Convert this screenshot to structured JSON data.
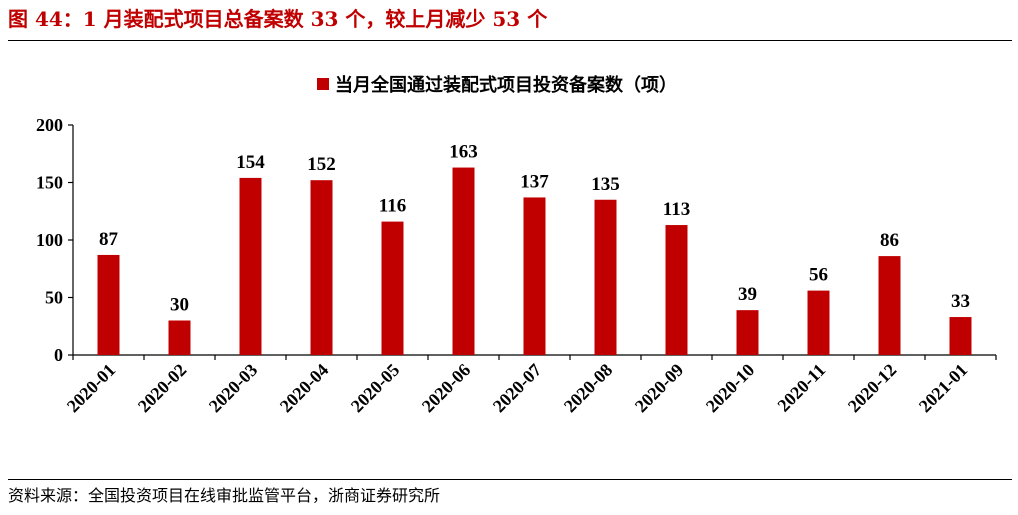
{
  "figure": {
    "title": "图 44：1 月装配式项目总备案数 33 个，较上月减少 53 个",
    "source": "资料来源：全国投资项目在线审批监管平台，浙商证券研究所",
    "title_color": "#C00000"
  },
  "chart_data": {
    "type": "bar",
    "categories": [
      "2020-01",
      "2020-02",
      "2020-03",
      "2020-04",
      "2020-05",
      "2020-06",
      "2020-07",
      "2020-08",
      "2020-09",
      "2020-10",
      "2020-11",
      "2020-12",
      "2021-01"
    ],
    "series": [
      {
        "name": "当月全国通过装配式项目投资备案数（项）",
        "values": [
          87,
          30,
          154,
          152,
          116,
          163,
          137,
          135,
          113,
          39,
          56,
          86,
          33
        ],
        "color": "#C00000"
      }
    ],
    "ylim": [
      0,
      200
    ],
    "yticks": [
      0,
      50,
      100,
      150,
      200
    ],
    "legend_position": "top-center",
    "grid": false,
    "data_labels": true
  }
}
